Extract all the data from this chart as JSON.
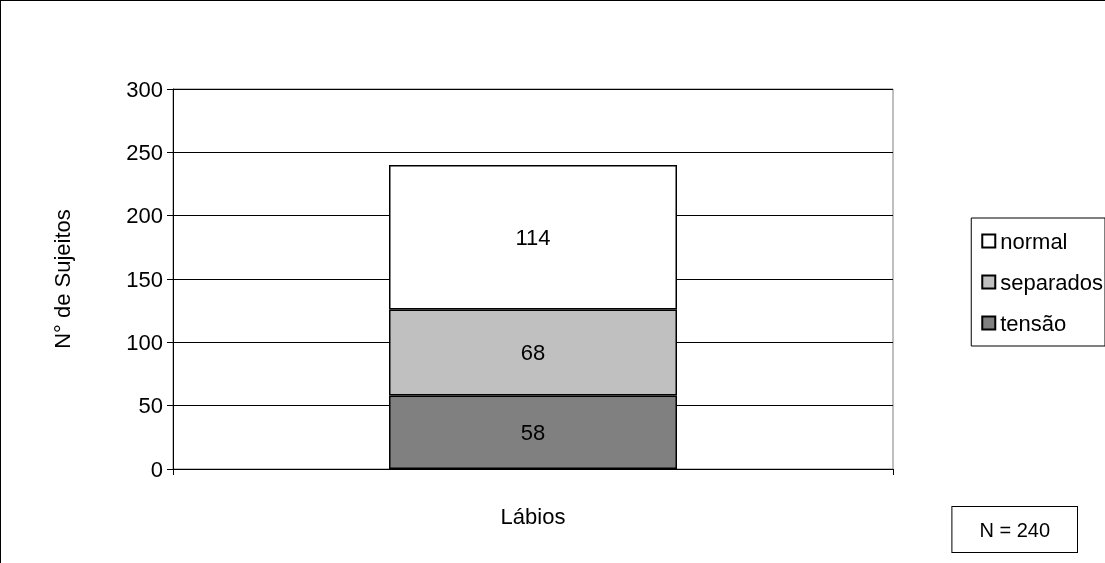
{
  "chart_data": {
    "type": "bar",
    "stacked": true,
    "ylabel": "N° de Sujeitos",
    "categories": [
      "Lábios"
    ],
    "series": [
      {
        "name": "tensão",
        "color": "#808080",
        "values": [
          58
        ]
      },
      {
        "name": "separados",
        "color": "#c0c0c0",
        "values": [
          68
        ]
      },
      {
        "name": "normal",
        "color": "#ffffff",
        "values": [
          114
        ]
      }
    ],
    "ylim": [
      0,
      300
    ],
    "yticks": [
      0,
      50,
      100,
      150,
      200,
      250,
      300
    ],
    "grid": "y",
    "legend": "right",
    "data_labels": true,
    "annotations": [
      "N = 240"
    ]
  }
}
